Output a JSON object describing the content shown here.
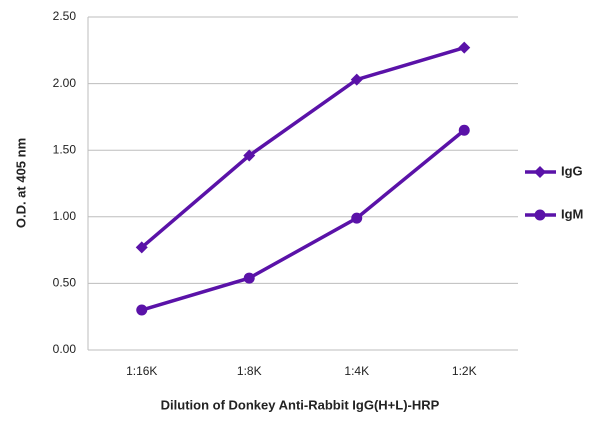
{
  "chart_data": {
    "type": "line",
    "x_label": "Dilution of Donkey Anti-Rabbit IgG(H+L)-HRP",
    "y_label": "O.D. at 405 nm",
    "categories": [
      "1:16K",
      "1:8K",
      "1:4K",
      "1:2K"
    ],
    "series": [
      {
        "name": "IgG",
        "color": "#5a12a8",
        "marker": "diamond",
        "values": [
          0.77,
          1.46,
          2.03,
          2.27
        ]
      },
      {
        "name": "IgM",
        "color": "#5a12a8",
        "marker": "circle",
        "values": [
          0.3,
          0.54,
          0.99,
          1.65
        ]
      }
    ],
    "ylim": [
      0,
      2.5
    ],
    "yticks": [
      {
        "value": 0,
        "label": "0.00"
      },
      {
        "value": 0.5,
        "label": "0.50"
      },
      {
        "value": 1,
        "label": "1.00"
      },
      {
        "value": 1.5,
        "label": "1.50"
      },
      {
        "value": 2,
        "label": "2.00"
      },
      {
        "value": 2.5,
        "label": "2.50"
      }
    ],
    "grid": true,
    "legend": "right"
  }
}
